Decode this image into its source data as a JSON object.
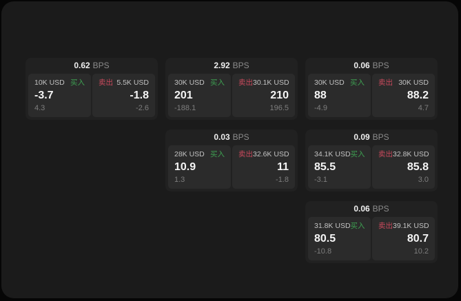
{
  "theme": {
    "outer_bg": "#060606",
    "page_bg": "#1b1b1b",
    "card_bg": "#212121",
    "panel_bg": "#2b2b2b",
    "value_color": "#f5f5f5",
    "amount_color": "#c2c2c2",
    "sub_color": "#7e7e7e",
    "bps_unit_color": "#8c8c8c",
    "buy_color": "#3ea152",
    "sell_color": "#c9495c"
  },
  "labels": {
    "buy": "买入",
    "sell": "卖出",
    "bps": "BPS"
  },
  "cards": [
    {
      "bps": "0.62",
      "buy": {
        "amount": "10K USD",
        "value": "-3.7",
        "sub": "4.3"
      },
      "sell": {
        "amount": "5.5K USD",
        "value": "-1.8",
        "sub": "-2.6"
      }
    },
    {
      "bps": "2.92",
      "buy": {
        "amount": "30K USD",
        "value": "201",
        "sub": "-188.1"
      },
      "sell": {
        "amount": "30.1K USD",
        "value": "210",
        "sub": "196.5"
      }
    },
    {
      "bps": "0.06",
      "buy": {
        "amount": "30K USD",
        "value": "88",
        "sub": "-4.9"
      },
      "sell": {
        "amount": "30K USD",
        "value": "88.2",
        "sub": "4.7"
      }
    },
    {
      "bps": "0.03",
      "buy": {
        "amount": "28K USD",
        "value": "10.9",
        "sub": "1.3"
      },
      "sell": {
        "amount": "32.6K USD",
        "value": "11",
        "sub": "-1.8"
      }
    },
    {
      "bps": "0.09",
      "buy": {
        "amount": "34.1K USD",
        "value": "85.5",
        "sub": "-3.1"
      },
      "sell": {
        "amount": "32.8K USD",
        "value": "85.8",
        "sub": "3.0"
      }
    },
    {
      "bps": "0.06",
      "buy": {
        "amount": "31.8K USD",
        "value": "80.5",
        "sub": "-10.8"
      },
      "sell": {
        "amount": "39.1K USD",
        "value": "80.7",
        "sub": "10.2"
      }
    }
  ]
}
